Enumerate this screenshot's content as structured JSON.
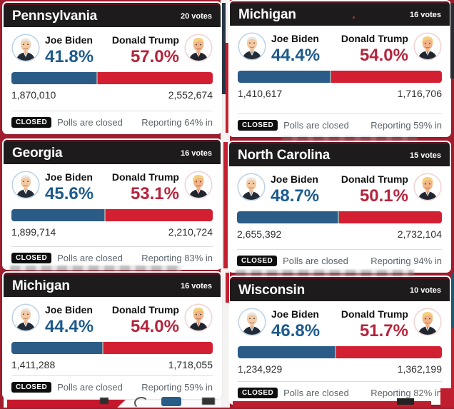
{
  "colors": {
    "page_background": "#a01d2e",
    "header_background": "#1d1b1c",
    "biden_blue_text": "#1d5b8c",
    "trump_red_text": "#b5243c",
    "bar_blue": "#2b5c88",
    "bar_red": "#d31f32",
    "closed_badge_bg": "#0e0e0e",
    "footer_text": "#5c646b"
  },
  "cards": [
    {
      "state": "Pennsylvania",
      "votes": "20 votes",
      "biden_name": "Joe Biden",
      "biden_pct": "41.8%",
      "trump_name": "Donald Trump",
      "trump_pct": "57.0%",
      "biden_votes": "1,870,010",
      "trump_votes": "2,552,674",
      "closed_badge": "CLOSED",
      "polls_status": "Polls are closed",
      "reporting": "Reporting 64% in"
    },
    {
      "state": "Michigan",
      "votes": "16 votes",
      "biden_name": "Joe Biden",
      "biden_pct": "44.4%",
      "trump_name": "Donald Trump",
      "trump_pct": "54.0%",
      "biden_votes": "1,410,617",
      "trump_votes": "1,716,706",
      "closed_badge": "CLOSED",
      "polls_status": "Polls are closed",
      "reporting": "Reporting 59% in"
    },
    {
      "state": "Georgia",
      "votes": "16 votes",
      "biden_name": "Joe Biden",
      "biden_pct": "45.6%",
      "trump_name": "Donald Trump",
      "trump_pct": "53.1%",
      "biden_votes": "1,899,714",
      "trump_votes": "2,210,724",
      "closed_badge": "CLOSED",
      "polls_status": "Polls are closed",
      "reporting": "Reporting 83% in"
    },
    {
      "state": "North Carolina",
      "votes": "15 votes",
      "biden_name": "Joe Biden",
      "biden_pct": "48.7%",
      "trump_name": "Donald Trump",
      "trump_pct": "50.1%",
      "biden_votes": "2,655,392",
      "trump_votes": "2,732,104",
      "closed_badge": "CLOSED",
      "polls_status": "Polls are closed",
      "reporting": "Reporting 94% in"
    },
    {
      "state": "Michigan",
      "votes": "16 votes",
      "biden_name": "Joe Biden",
      "biden_pct": "44.4%",
      "trump_name": "Donald Trump",
      "trump_pct": "54.0%",
      "biden_votes": "1,411,288",
      "trump_votes": "1,718,055",
      "closed_badge": "CLOSED",
      "polls_status": "Polls are closed",
      "reporting": "Reporting 59% in"
    },
    {
      "state": "Wisconsin",
      "votes": "10 votes",
      "biden_name": "Joe Biden",
      "biden_pct": "46.8%",
      "trump_name": "Donald Trump",
      "trump_pct": "51.7%",
      "biden_votes": "1,234,929",
      "trump_votes": "1,362,199",
      "closed_badge": "CLOSED",
      "polls_status": "Polls are closed",
      "reporting": "Reporting 82% in"
    }
  ]
}
